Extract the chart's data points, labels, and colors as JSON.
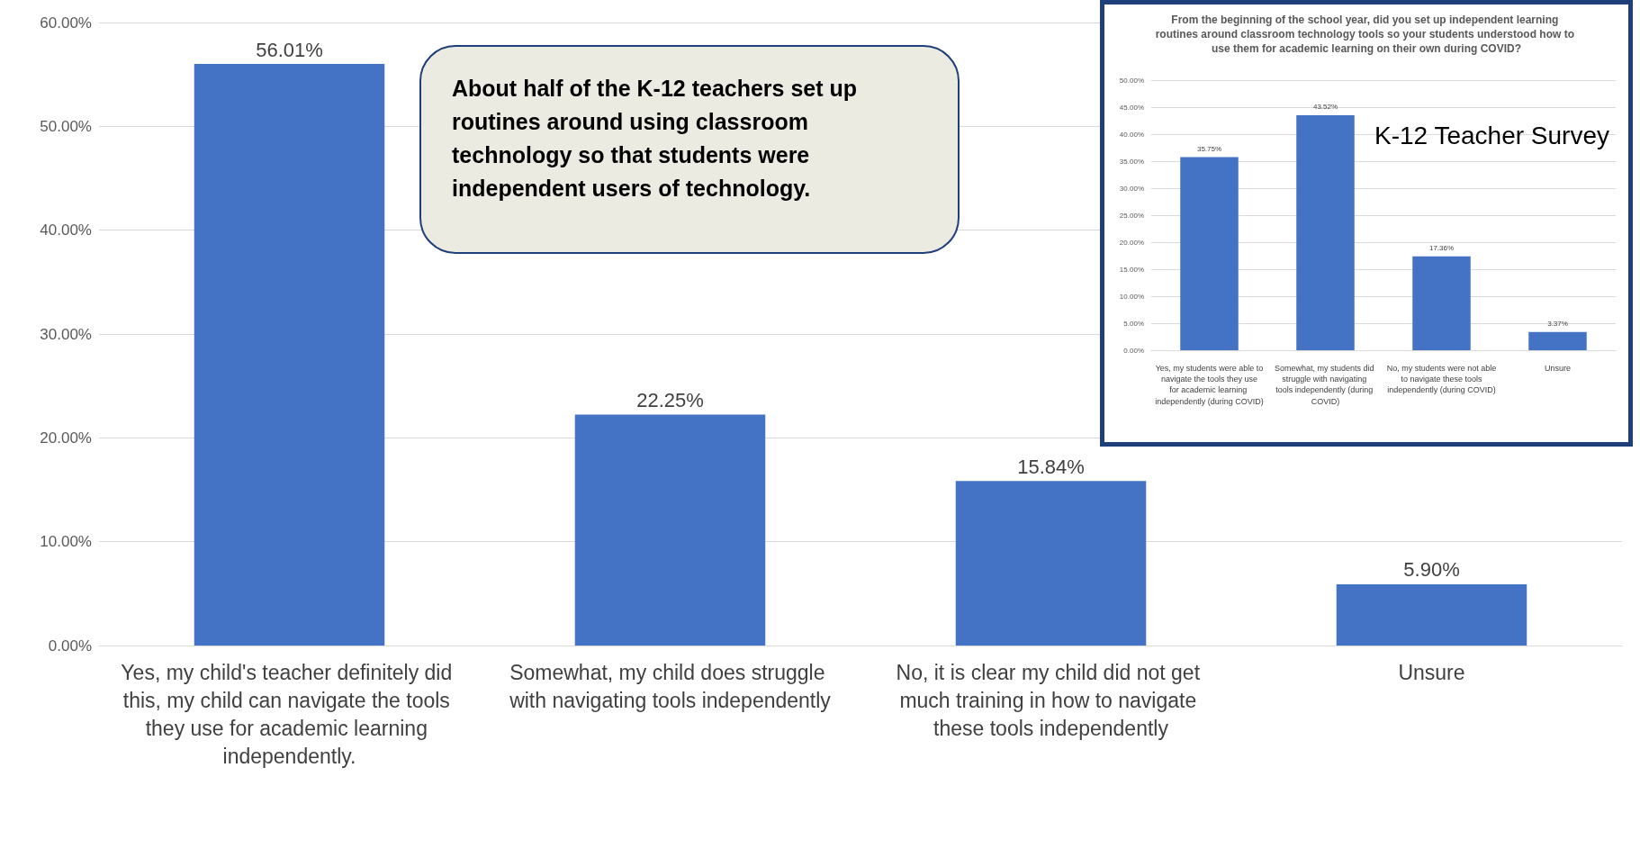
{
  "chart_data": [
    {
      "type": "bar",
      "categories": [
        "Yes, my child's teacher definitely did this, my child can navigate the tools they use for academic learning independently.",
        "Somewhat, my child does struggle with navigating tools independently",
        "No, it is clear my child did not get much training in how to navigate these tools independently",
        "Unsure"
      ],
      "values": [
        56.01,
        22.25,
        15.84,
        5.9
      ],
      "value_labels": [
        "56.01%",
        "22.25%",
        "15.84%",
        "5.90%"
      ],
      "color": "#4472c4",
      "ylim": [
        0,
        60
      ],
      "yticks": [
        {
          "value": 0,
          "label": "0.00%"
        },
        {
          "value": 10,
          "label": "10.00%"
        },
        {
          "value": 20,
          "label": "20.00%"
        },
        {
          "value": 30,
          "label": "30.00%"
        },
        {
          "value": 40,
          "label": "40.00%"
        },
        {
          "value": 50,
          "label": "50.00%"
        },
        {
          "value": 60,
          "label": "60.00%"
        }
      ],
      "grid": "y",
      "annotations": [
        "About half of the K-12 teachers set up routines around using classroom technology so that students were independent users of technology."
      ]
    },
    {
      "type": "bar",
      "title": "From the beginning of the school year, did you set up independent learning routines around classroom technology tools so your students understood how to use them for academic learning on their own during COVID?",
      "categories": [
        "Yes, my students were able to navigate the tools they use for academic learning independently (during COVID)",
        "Somewhat, my students did struggle with navigating tools independently (during COVID)",
        "No, my students were not able to navigate these tools independently (during COVID)",
        "Unsure"
      ],
      "values": [
        35.75,
        43.52,
        17.36,
        3.37
      ],
      "value_labels": [
        "35.75%",
        "43.52%",
        "17.36%",
        "3.37%"
      ],
      "color": "#4472c4",
      "ylim": [
        0,
        50
      ],
      "yticks": [
        {
          "value": 0,
          "label": "0.00%"
        },
        {
          "value": 5,
          "label": "5.00%"
        },
        {
          "value": 10,
          "label": "10.00%"
        },
        {
          "value": 15,
          "label": "15.00%"
        },
        {
          "value": 20,
          "label": "20.00%"
        },
        {
          "value": 25,
          "label": "25.00%"
        },
        {
          "value": 30,
          "label": "30.00%"
        },
        {
          "value": 35,
          "label": "35.00%"
        },
        {
          "value": 40,
          "label": "40.00%"
        },
        {
          "value": 45,
          "label": "45.00%"
        },
        {
          "value": 50,
          "label": "50.00%"
        }
      ],
      "grid": "y",
      "annotations": [
        "K-12 Teacher Survey"
      ]
    }
  ]
}
